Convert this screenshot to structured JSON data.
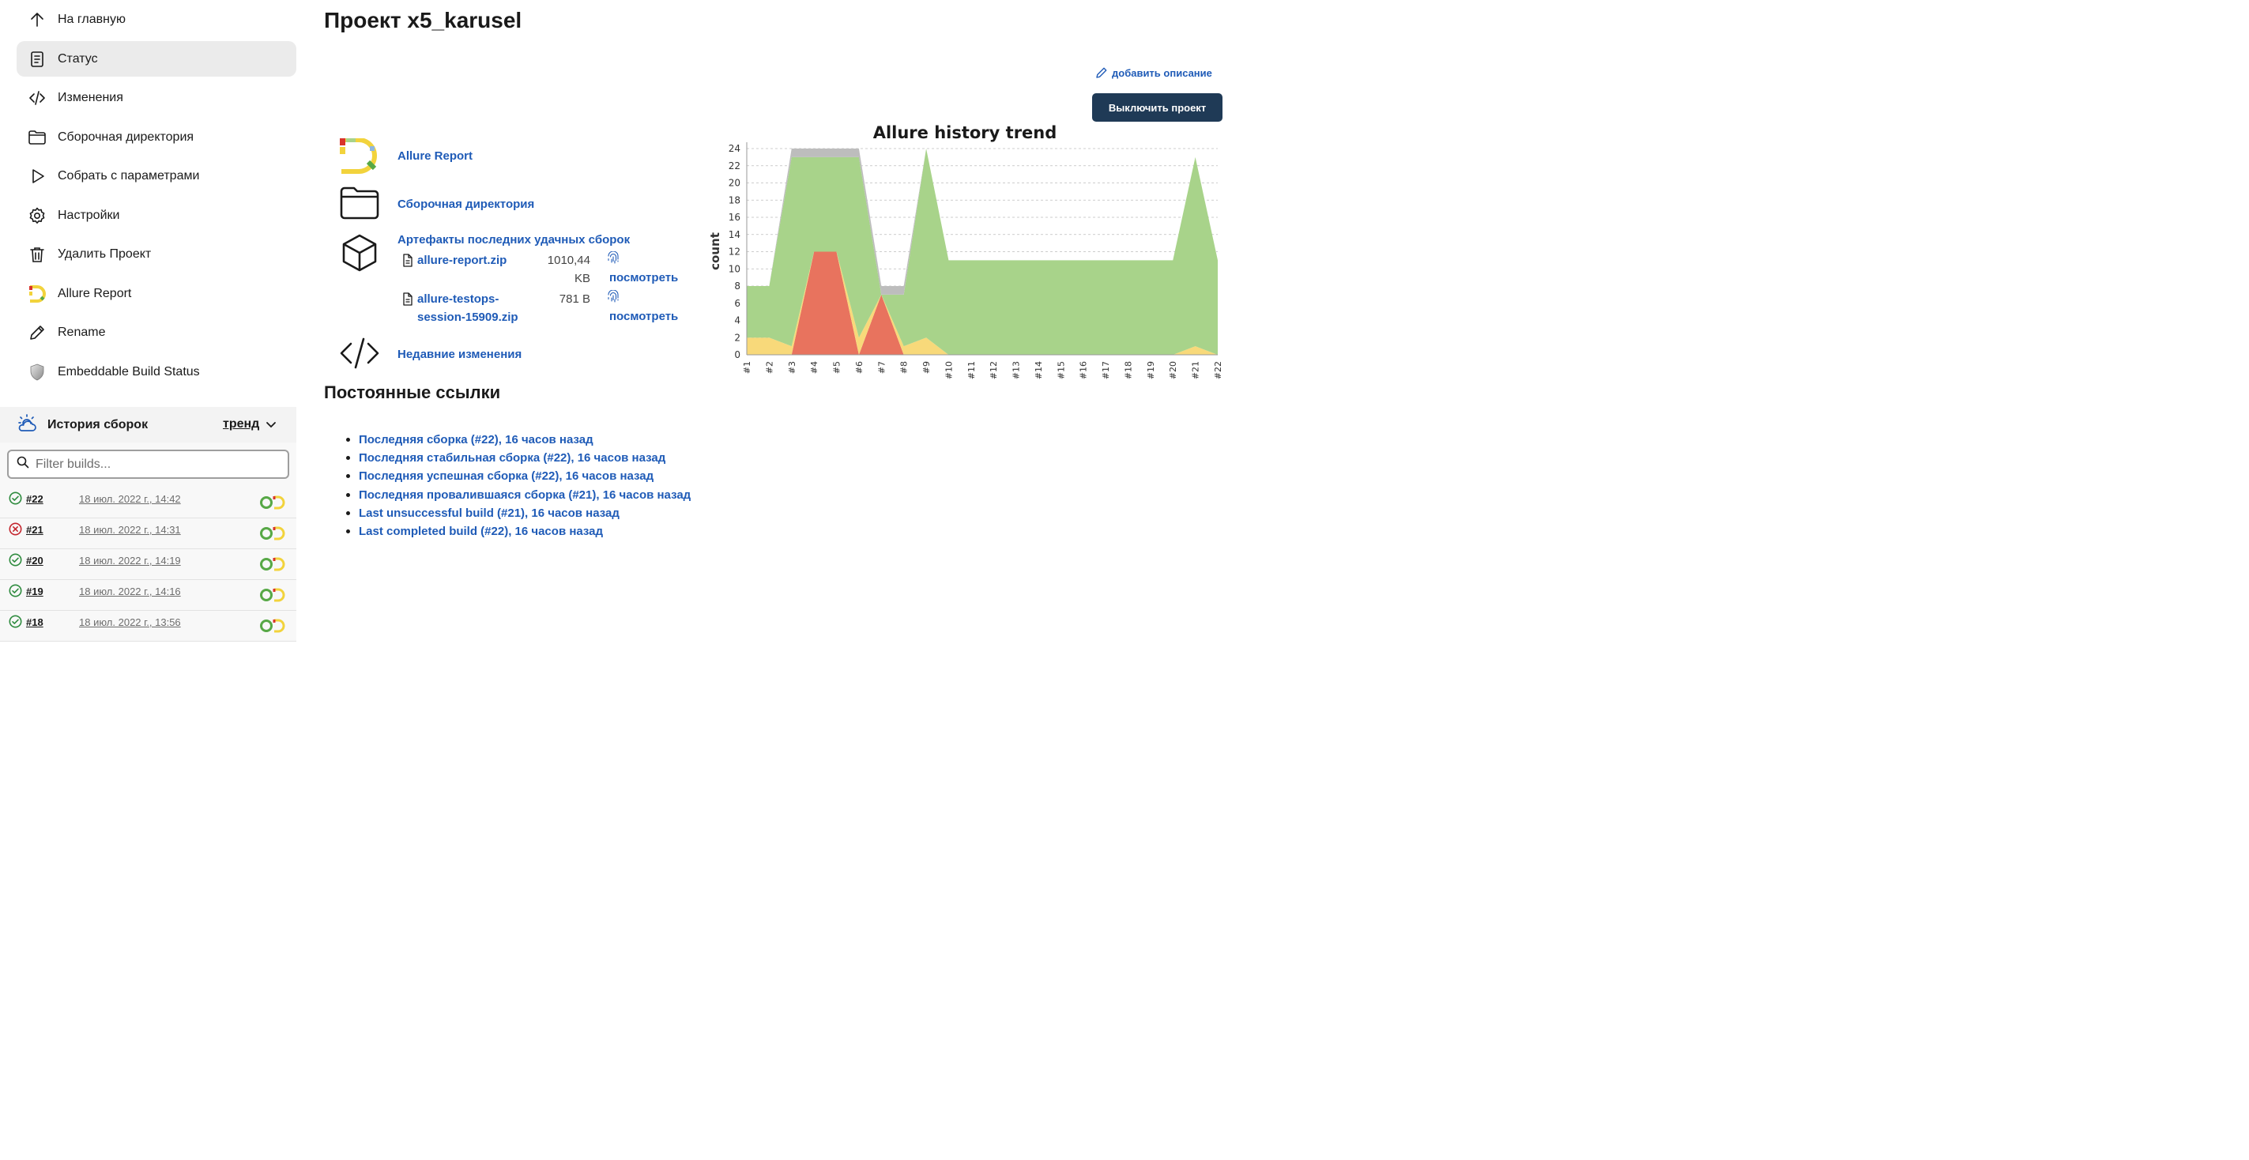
{
  "sidebar": {
    "items": [
      {
        "label": "На главную",
        "icon": "arrow-up-icon"
      },
      {
        "label": "Статус",
        "icon": "document-icon",
        "active": true
      },
      {
        "label": "Изменения",
        "icon": "code-icon"
      },
      {
        "label": "Сборочная директория",
        "icon": "folder-icon"
      },
      {
        "label": "Собрать с параметрами",
        "icon": "play-icon"
      },
      {
        "label": "Настройки",
        "icon": "gear-icon"
      },
      {
        "label": "Удалить Проект",
        "icon": "trash-icon"
      },
      {
        "label": "Allure Report",
        "icon": "allure-logo-icon"
      },
      {
        "label": "Rename",
        "icon": "pencil-icon"
      },
      {
        "label": "Embeddable Build Status",
        "icon": "shield-icon"
      }
    ]
  },
  "history": {
    "title": "История сборок",
    "trend_label": "тренд",
    "filter_placeholder": "Filter builds...",
    "builds": [
      {
        "number": "#22",
        "date": "18 июл. 2022 г., 14:42",
        "status": "success"
      },
      {
        "number": "#21",
        "date": "18 июл. 2022 г., 14:31",
        "status": "failed"
      },
      {
        "number": "#20",
        "date": "18 июл. 2022 г., 14:19",
        "status": "success"
      },
      {
        "number": "#19",
        "date": "18 июл. 2022 г., 14:16",
        "status": "success"
      },
      {
        "number": "#18",
        "date": "18 июл. 2022 г., 13:56",
        "status": "success"
      }
    ]
  },
  "main": {
    "title": "Проект x5_karusel",
    "add_description": "добавить описание",
    "disable_button": "Выключить проект",
    "links": {
      "allure_report": "Allure Report",
      "workspace": "Сборочная директория",
      "artifacts_title": "Артефакты последних удачных сборок",
      "recent_changes": "Недавние изменения"
    },
    "artifacts": [
      {
        "name": "allure-report.zip",
        "size_line1": "1010,44",
        "size_line2": "KB",
        "view": "посмотреть"
      },
      {
        "name": "allure-testops-session-15909.zip",
        "size_line1": "781 B",
        "view": "посмотреть"
      }
    ],
    "permalinks_title": "Постоянные ссылки",
    "permalinks": [
      "Последняя сборка (#22), 16 часов назад",
      "Последняя стабильная сборка (#22), 16 часов назад",
      "Последняя успешная сборка (#22), 16 часов назад",
      "Последняя провалившаяся сборка (#21), 16 часов назад",
      "Last unsuccessful build (#21), 16 часов назад",
      "Last completed build (#22), 16 часов назад"
    ]
  },
  "chart_data": {
    "type": "area",
    "title": "Allure history trend",
    "ylabel": "count",
    "xlabel": "",
    "ylim": [
      0,
      24
    ],
    "yticks": [
      0,
      2,
      4,
      6,
      8,
      10,
      12,
      14,
      16,
      18,
      20,
      22,
      24
    ],
    "categories": [
      "#1",
      "#2",
      "#3",
      "#4",
      "#5",
      "#6",
      "#7",
      "#8",
      "#9",
      "#10",
      "#11",
      "#12",
      "#13",
      "#14",
      "#15",
      "#16",
      "#17",
      "#18",
      "#19",
      "#20",
      "#21",
      "#22"
    ],
    "stacked": true,
    "grid": true,
    "series": [
      {
        "key": "red",
        "color": "#e8735e",
        "values": [
          0,
          0,
          0,
          12,
          12,
          0,
          7,
          0,
          0,
          0,
          0,
          0,
          0,
          0,
          0,
          0,
          0,
          0,
          0,
          0,
          0,
          0
        ]
      },
      {
        "key": "yellow",
        "color": "#f8d97a",
        "values": [
          2,
          2,
          1,
          0,
          0,
          2,
          0,
          1,
          2,
          0,
          0,
          0,
          0,
          0,
          0,
          0,
          0,
          0,
          0,
          0,
          1,
          0
        ]
      },
      {
        "key": "green",
        "color": "#a8d38a",
        "values": [
          6,
          6,
          22,
          11,
          11,
          21,
          0,
          6,
          22,
          11,
          11,
          11,
          11,
          11,
          11,
          11,
          11,
          11,
          11,
          11,
          22,
          11
        ]
      },
      {
        "key": "gray",
        "color": "#bdbdbd",
        "values": [
          0,
          0,
          1,
          1,
          1,
          1,
          1,
          1,
          0,
          0,
          0,
          0,
          0,
          0,
          0,
          0,
          0,
          0,
          0,
          0,
          0,
          0
        ]
      }
    ]
  }
}
